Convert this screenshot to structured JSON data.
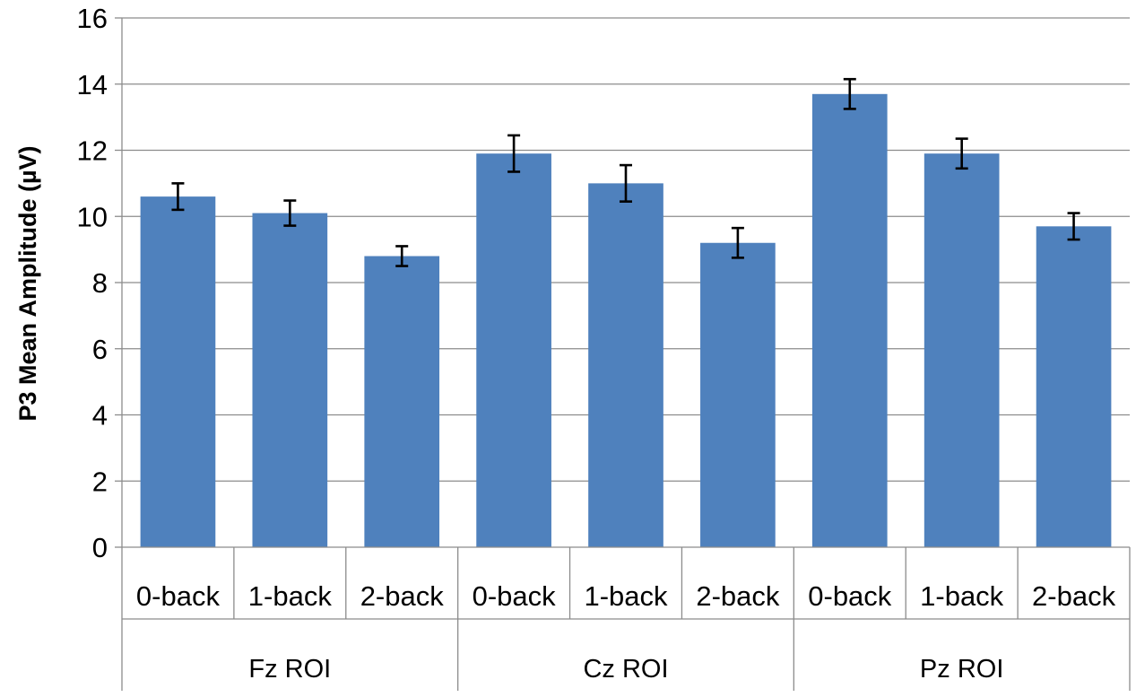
{
  "chart_data": {
    "type": "bar",
    "title": "",
    "xlabel": "",
    "ylabel": "P3 Mean Amplitude (µV)",
    "ylim": [
      0,
      16
    ],
    "yticks": [
      0,
      2,
      4,
      6,
      8,
      10,
      12,
      14,
      16
    ],
    "grid": true,
    "legend": "none",
    "bar_color": "#4f81bd",
    "groups": [
      {
        "label": "Fz ROI",
        "categories": [
          "0-back",
          "1-back",
          "2-back"
        ],
        "values": [
          10.6,
          10.1,
          8.8
        ],
        "errors": [
          0.4,
          0.38,
          0.3
        ]
      },
      {
        "label": "Cz ROI",
        "categories": [
          "0-back",
          "1-back",
          "2-back"
        ],
        "values": [
          11.9,
          11.0,
          9.2
        ],
        "errors": [
          0.55,
          0.55,
          0.45
        ]
      },
      {
        "label": "Pz ROI",
        "categories": [
          "0-back",
          "1-back",
          "2-back"
        ],
        "values": [
          13.7,
          11.9,
          9.7
        ],
        "errors": [
          0.45,
          0.45,
          0.4
        ]
      }
    ]
  }
}
